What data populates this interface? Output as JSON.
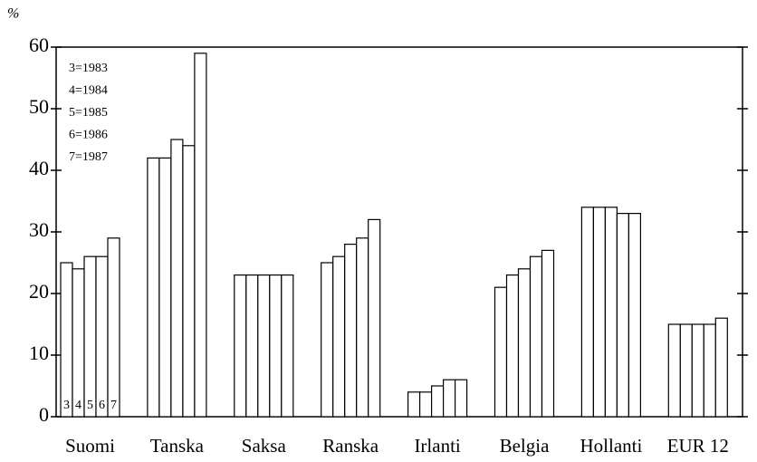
{
  "chart_data": {
    "type": "bar",
    "y_label": "%",
    "categories": [
      "Suomi",
      "Tanska",
      "Saksa",
      "Ranska",
      "Irlanti",
      "Belgia",
      "Hollanti",
      "EUR 12"
    ],
    "series": [
      {
        "name": "3=1983",
        "key": "3",
        "color": "#ffffff",
        "values": [
          25,
          42,
          23,
          25,
          4,
          21,
          34,
          15
        ]
      },
      {
        "name": "4=1984",
        "key": "4",
        "color": "#ffffff",
        "values": [
          24,
          42,
          23,
          26,
          4,
          23,
          34,
          15
        ]
      },
      {
        "name": "5=1985",
        "key": "5",
        "color": "#ffffff",
        "values": [
          26,
          45,
          23,
          28,
          5,
          24,
          34,
          15
        ]
      },
      {
        "name": "6=1986",
        "key": "6",
        "color": "#ffffff",
        "values": [
          26,
          44,
          23,
          29,
          6,
          26,
          33,
          15
        ]
      },
      {
        "name": "7=1987",
        "key": "7",
        "color": "#ffffff",
        "values": [
          29,
          59,
          23,
          32,
          6,
          27,
          33,
          16
        ]
      }
    ],
    "ylim": [
      0,
      60
    ],
    "yticks": [
      0,
      10,
      20,
      30,
      40,
      50,
      60
    ],
    "grid": false
  }
}
